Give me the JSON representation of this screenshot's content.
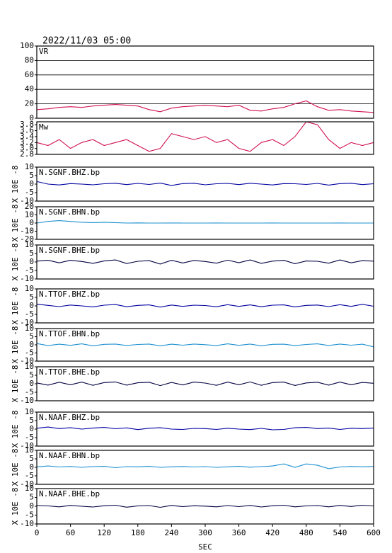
{
  "chart_data": [
    {
      "type": "line",
      "header": "2022/11/03 05:00",
      "title": "VR",
      "color": "#d01050",
      "grid": true,
      "xlim": [
        0,
        600
      ],
      "ylim": [
        0,
        100
      ],
      "yticks": [
        0,
        20,
        40,
        60,
        80,
        100
      ],
      "x": [
        0,
        20,
        40,
        60,
        80,
        100,
        120,
        140,
        160,
        180,
        200,
        220,
        240,
        260,
        280,
        300,
        320,
        340,
        360,
        380,
        400,
        420,
        440,
        460,
        480,
        500,
        520,
        540,
        560,
        580,
        600
      ],
      "values": [
        12,
        13,
        15,
        16,
        15,
        17,
        18,
        19,
        18,
        17,
        12,
        9,
        14,
        16,
        17,
        18,
        17,
        16,
        18,
        11,
        10,
        13,
        15,
        20,
        24,
        16,
        11,
        12,
        10,
        9,
        8
      ]
    },
    {
      "type": "line",
      "title": "Mw",
      "color": "#d01050",
      "xlim": [
        0,
        600
      ],
      "ylim": [
        2.8,
        3.9
      ],
      "yticks": [
        2.8,
        {
          "value": 3,
          "label": "3.0"
        },
        3.2,
        3.4,
        3.6,
        3.8
      ],
      "x": [
        0,
        20,
        40,
        60,
        80,
        100,
        120,
        140,
        160,
        180,
        200,
        220,
        240,
        260,
        280,
        300,
        320,
        340,
        360,
        380,
        400,
        420,
        440,
        460,
        480,
        500,
        520,
        540,
        560,
        580,
        600
      ],
      "values": [
        3.2,
        3.1,
        3.3,
        3.0,
        3.2,
        3.3,
        3.1,
        3.2,
        3.3,
        3.1,
        2.9,
        3.0,
        3.5,
        3.4,
        3.3,
        3.4,
        3.2,
        3.3,
        3.0,
        2.9,
        3.2,
        3.3,
        3.1,
        3.4,
        3.9,
        3.8,
        3.3,
        3.0,
        3.2,
        3.1,
        3.2
      ]
    },
    {
      "type": "line",
      "title": "N.SGNF.BHZ.bp",
      "ylabel": "X 10E -8",
      "color": "#0000a0",
      "xlim": [
        0,
        600
      ],
      "ylim": [
        -10,
        10
      ],
      "yticks": [
        -10,
        -5,
        0,
        5,
        10
      ],
      "x": [
        0,
        20,
        40,
        60,
        80,
        100,
        120,
        140,
        160,
        180,
        200,
        220,
        240,
        260,
        280,
        300,
        320,
        340,
        360,
        380,
        400,
        420,
        440,
        460,
        480,
        500,
        520,
        540,
        560,
        580,
        600
      ],
      "values": [
        1.5,
        0,
        -0.5,
        0.3,
        0,
        -0.4,
        0.2,
        0.5,
        -0.3,
        0.4,
        -0.2,
        0.6,
        -0.8,
        0.3,
        0.5,
        -0.4,
        0.2,
        0.4,
        -0.3,
        0.5,
        0,
        -0.5,
        0.3,
        0.2,
        -0.2,
        0.4,
        -0.6,
        0.3,
        0.5,
        -0.3,
        0.2
      ]
    },
    {
      "type": "line",
      "title": "N.SGNF.BHN.bp",
      "ylabel": "X 10E -8",
      "color": "#1e90d0",
      "xlim": [
        0,
        600
      ],
      "ylim": [
        -20,
        20
      ],
      "yticks": [
        -20,
        -10,
        0,
        10,
        20
      ],
      "x": [
        0,
        20,
        40,
        60,
        80,
        100,
        120,
        140,
        160,
        180,
        200,
        220,
        240,
        260,
        280,
        300,
        320,
        340,
        360,
        380,
        400,
        420,
        440,
        460,
        480,
        500,
        520,
        540,
        560,
        580,
        600
      ],
      "values": [
        0,
        2,
        3,
        2,
        1,
        0.5,
        1,
        0.5,
        0,
        0.2,
        0,
        0,
        0.1,
        0,
        0,
        0,
        0.1,
        0,
        0,
        0,
        0,
        0.1,
        0,
        0,
        0,
        0,
        0,
        0.1,
        0,
        0,
        0
      ]
    },
    {
      "type": "line",
      "title": "N.SGNF.BHE.bp",
      "ylabel": "X 10E -8",
      "color": "#000040",
      "xlim": [
        0,
        600
      ],
      "ylim": [
        -10,
        10
      ],
      "yticks": [
        -10,
        -5,
        0,
        5,
        10
      ],
      "x": [
        0,
        20,
        40,
        60,
        80,
        100,
        120,
        140,
        160,
        180,
        200,
        220,
        240,
        260,
        280,
        300,
        320,
        340,
        360,
        380,
        400,
        420,
        440,
        460,
        480,
        500,
        520,
        540,
        560,
        580,
        600
      ],
      "values": [
        0.5,
        1,
        -0.5,
        1,
        0.3,
        -0.8,
        0.6,
        1.2,
        -0.9,
        0.4,
        0.8,
        -1.2,
        1.0,
        -0.6,
        0.9,
        0.3,
        -0.7,
        1.1,
        -0.4,
        1.2,
        -0.8,
        0.5,
        1.0,
        -1.0,
        0.6,
        0.4,
        -0.7,
        1.2,
        -0.5,
        0.8,
        0.5
      ]
    },
    {
      "type": "line",
      "title": "N.TTOF.BHZ.bp",
      "ylabel": "X 10E -8",
      "color": "#0000a0",
      "xlim": [
        0,
        600
      ],
      "ylim": [
        -10,
        10
      ],
      "yticks": [
        -10,
        -5,
        0,
        5,
        10
      ],
      "x": [
        0,
        20,
        40,
        60,
        80,
        100,
        120,
        140,
        160,
        180,
        200,
        220,
        240,
        260,
        280,
        300,
        320,
        340,
        360,
        380,
        400,
        420,
        440,
        460,
        480,
        500,
        520,
        540,
        560,
        580,
        600
      ],
      "values": [
        1,
        0.3,
        -0.4,
        0.5,
        0,
        -0.6,
        0.4,
        0.8,
        -0.5,
        0.3,
        0.6,
        -0.7,
        0.5,
        -0.3,
        0.4,
        0.2,
        -0.5,
        0.7,
        -0.3,
        0.6,
        -0.5,
        0.4,
        0.6,
        -0.6,
        0.3,
        0.5,
        -0.4,
        0.7,
        -0.3,
        0.9,
        -0.2
      ]
    },
    {
      "type": "line",
      "title": "N.TTOF.BHN.bp",
      "ylabel": "X 10E -8",
      "color": "#1e90d0",
      "xlim": [
        0,
        600
      ],
      "ylim": [
        -10,
        10
      ],
      "yticks": [
        -10,
        -5,
        0,
        5,
        10
      ],
      "x": [
        0,
        20,
        40,
        60,
        80,
        100,
        120,
        140,
        160,
        180,
        200,
        220,
        240,
        260,
        280,
        300,
        320,
        340,
        360,
        380,
        400,
        420,
        440,
        460,
        480,
        500,
        520,
        540,
        560,
        580,
        600
      ],
      "values": [
        0.8,
        -0.5,
        0.4,
        -0.3,
        0.6,
        -0.6,
        0.3,
        0.5,
        -0.4,
        0.2,
        0.5,
        -0.6,
        0.4,
        -0.2,
        0.5,
        0.1,
        -0.5,
        0.6,
        -0.3,
        0.5,
        -0.6,
        0.3,
        0.4,
        -0.5,
        0.2,
        0.6,
        -0.4,
        0.5,
        -0.2,
        0.4,
        -1.2
      ]
    },
    {
      "type": "line",
      "title": "N.TTOF.BHE.bp",
      "ylabel": "X 10E -8",
      "color": "#000040",
      "xlim": [
        0,
        600
      ],
      "ylim": [
        -10,
        10
      ],
      "yticks": [
        -10,
        -5,
        0,
        5,
        10
      ],
      "x": [
        0,
        20,
        40,
        60,
        80,
        100,
        120,
        140,
        160,
        180,
        200,
        220,
        240,
        260,
        280,
        300,
        320,
        340,
        360,
        380,
        400,
        420,
        440,
        460,
        480,
        500,
        520,
        540,
        560,
        580,
        600
      ],
      "values": [
        0.5,
        -0.8,
        0.9,
        -0.6,
        1.0,
        -0.9,
        0.7,
        1.1,
        -0.8,
        0.6,
        0.9,
        -1.1,
        0.8,
        -0.7,
        1.0,
        0.4,
        -0.9,
        1.0,
        -0.6,
        1.1,
        -0.9,
        0.7,
        1.0,
        -1.0,
        0.5,
        0.9,
        -0.8,
        1.0,
        -0.6,
        0.8,
        0.3
      ]
    },
    {
      "type": "line",
      "title": "N.NAAF.BHZ.bp",
      "ylabel": "X 10E -8",
      "color": "#0000a0",
      "xlim": [
        0,
        600
      ],
      "ylim": [
        -10,
        10
      ],
      "yticks": [
        -10,
        -5,
        0,
        5,
        10
      ],
      "x": [
        0,
        20,
        40,
        60,
        80,
        100,
        120,
        140,
        160,
        180,
        200,
        220,
        240,
        260,
        280,
        300,
        320,
        340,
        360,
        380,
        400,
        420,
        440,
        460,
        480,
        500,
        520,
        540,
        560,
        580,
        600
      ],
      "values": [
        0.5,
        1.2,
        0.3,
        0.8,
        0,
        0.6,
        1.0,
        0.2,
        0.7,
        -0.3,
        0.5,
        0.8,
        0,
        -0.2,
        0.4,
        0.3,
        -0.2,
        0.5,
        0,
        -0.3,
        0.4,
        -0.4,
        -0.2,
        0.8,
        1.0,
        0.3,
        0.6,
        -0.2,
        0.5,
        0.3,
        0.6
      ]
    },
    {
      "type": "line",
      "title": "N.NAAF.BHN.bp",
      "ylabel": "X 10E -8",
      "color": "#1e90d0",
      "xlim": [
        0,
        600
      ],
      "ylim": [
        -10,
        10
      ],
      "yticks": [
        -10,
        -5,
        0,
        5,
        10
      ],
      "x": [
        0,
        20,
        40,
        60,
        80,
        100,
        120,
        140,
        160,
        180,
        200,
        220,
        240,
        260,
        280,
        300,
        320,
        340,
        360,
        380,
        400,
        420,
        440,
        460,
        480,
        500,
        520,
        540,
        560,
        580,
        600
      ],
      "values": [
        0.3,
        0.8,
        0.2,
        0.5,
        0,
        0.4,
        0.6,
        -0.2,
        0.4,
        0.3,
        0.6,
        0,
        0.3,
        0.5,
        0.2,
        0.4,
        0,
        0.3,
        0.6,
        0.1,
        0.4,
        0.8,
        2,
        0,
        2,
        1.2,
        -0.8,
        0.2,
        0.5,
        0.3,
        0.5
      ]
    },
    {
      "type": "line",
      "title": "N.NAAF.BHE.bp",
      "ylabel": "X 10E -8",
      "color": "#000040",
      "xlim": [
        0,
        600
      ],
      "ylim": [
        -10,
        10
      ],
      "yticks": [
        -10,
        -5,
        0,
        5,
        10
      ],
      "xticks": [
        0,
        60,
        120,
        180,
        240,
        300,
        360,
        420,
        480,
        540,
        600
      ],
      "xlabel": "SEC",
      "x": [
        0,
        20,
        40,
        60,
        80,
        100,
        120,
        140,
        160,
        180,
        200,
        220,
        240,
        260,
        280,
        300,
        320,
        340,
        360,
        380,
        400,
        420,
        440,
        460,
        480,
        500,
        520,
        540,
        560,
        580,
        600
      ],
      "values": [
        0.4,
        0.2,
        -0.3,
        0.5,
        0,
        -0.4,
        0.3,
        0.6,
        -0.5,
        0.2,
        0.4,
        -0.6,
        0.5,
        -0.2,
        0.3,
        0.1,
        -0.3,
        0.4,
        -0.2,
        0.5,
        -0.4,
        0.3,
        0.6,
        -0.3,
        0.2,
        0.4,
        -0.3,
        0.5,
        -0.1,
        0.6,
        0.2
      ]
    }
  ]
}
